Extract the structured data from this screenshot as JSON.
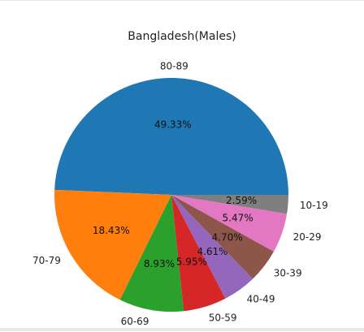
{
  "chart_data": {
    "type": "pie",
    "title": "Bangladesh(Males)",
    "categories": [
      "80-89",
      "70-79",
      "60-69",
      "50-59",
      "40-49",
      "30-39",
      "20-29",
      "10-19"
    ],
    "values": [
      49.33,
      18.43,
      8.93,
      5.95,
      4.61,
      4.7,
      5.47,
      2.59
    ],
    "value_labels": [
      "49.33%",
      "18.43%",
      "8.93%",
      "5.95%",
      "4.61%",
      "4.70%",
      "5.47%",
      "2.59%"
    ],
    "colors": [
      "#1f77b4",
      "#ff7f0e",
      "#2ca02c",
      "#d62728",
      "#9467bd",
      "#8c564b",
      "#e377c2",
      "#7f7f7f"
    ],
    "start_angle_deg": 0,
    "direction": "counterclockwise",
    "legend": "none"
  }
}
